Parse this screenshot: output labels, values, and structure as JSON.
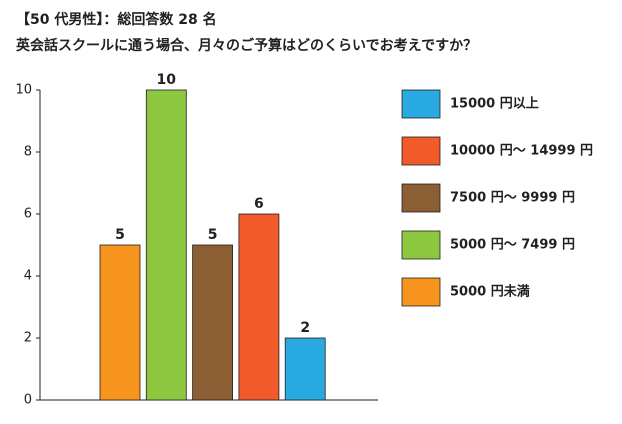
{
  "chart_data": {
    "type": "bar",
    "title": "【50 代男性】：総回答数 28 名",
    "subtitle": "英会話スクールに通う場合、月々のご予算はどのくらいでお考えですか？",
    "categories": [
      "5000 円未満",
      "5000 円～ 7499 円",
      "7500 円～ 9999 円",
      "10000 円～ 14999 円",
      "15000 円以上"
    ],
    "values": [
      5,
      10,
      5,
      6,
      2
    ],
    "colors": [
      "#f7941d",
      "#8dc63f",
      "#8b5e34",
      "#f15a29",
      "#29abe2"
    ],
    "ylim": [
      0,
      10
    ],
    "yticks": [
      0,
      2,
      4,
      6,
      8,
      10
    ]
  }
}
